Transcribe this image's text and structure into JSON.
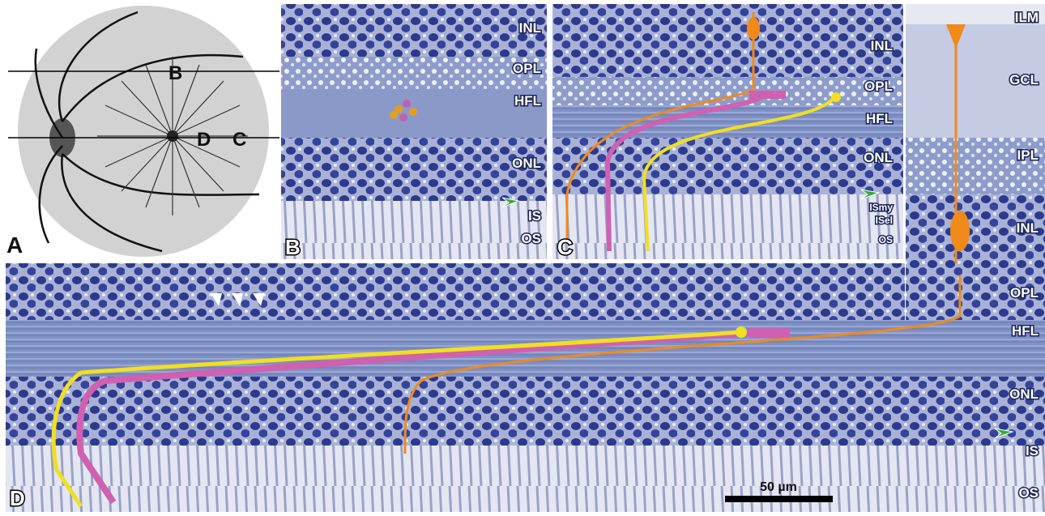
{
  "panels": {
    "a": {
      "label": "A",
      "markers": [
        "B",
        "D",
        "C"
      ]
    },
    "b": {
      "label": "B",
      "layers": [
        "INL",
        "OPL",
        "HFL",
        "ONL",
        "IS",
        "OS"
      ]
    },
    "c": {
      "label": "C",
      "layers": [
        "INL",
        "OPL",
        "HFL",
        "ONL",
        "ISmy",
        "ISel",
        "OS"
      ]
    },
    "strip": {
      "layers": [
        "ILM",
        "GCL",
        "IPL",
        "INL",
        "OPL",
        "HFL",
        "ONL",
        "IS",
        "OS"
      ]
    },
    "d": {
      "label": "D",
      "scale_bar": "50 µm"
    }
  }
}
